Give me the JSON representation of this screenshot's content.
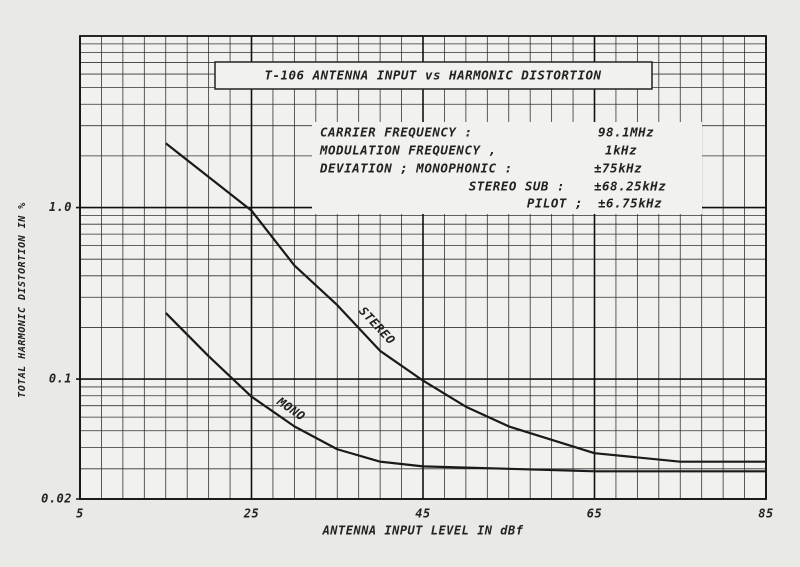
{
  "chart_data": {
    "type": "line",
    "xlabel": "ANTENNA INPUT LEVEL IN dBf",
    "ylabel": "TOTAL HARMONIC DISTORTION IN %",
    "xlim": [
      5,
      85
    ],
    "ylim": [
      0.02,
      10
    ],
    "xticks": [
      5,
      25,
      45,
      65,
      85
    ],
    "yticks": [
      0.02,
      0.1,
      {
        "value": 1,
        "label": "1.0"
      }
    ],
    "log_y": true,
    "grid": true,
    "minor_grid": true,
    "annotations": [
      "T-106 ANTENNA INPUT vs HARMONIC DISTORTION",
      "CARRIER FREQUENCY :",
      "98.1MHz",
      "MODULATION FREQUENCY ,",
      "1kHz",
      "DEVIATION ; MONOPHONIC :",
      "±75kHz",
      "STEREO SUB :",
      "±68.25kHz",
      "PILOT ;",
      "±6.75kHz"
    ],
    "series": [
      {
        "name": "STEREO",
        "color": "#1a1a1a",
        "x": [
          15,
          25,
          30,
          35,
          40,
          45,
          50,
          55,
          65,
          75,
          85
        ],
        "values": [
          2.37,
          0.96,
          0.46,
          0.27,
          0.146,
          0.098,
          0.069,
          0.053,
          0.037,
          0.033,
          0.033
        ]
      },
      {
        "name": "MONO",
        "color": "#1a1a1a",
        "x": [
          15,
          20,
          25,
          30,
          35,
          40,
          45,
          55,
          65,
          75,
          85
        ],
        "values": [
          0.243,
          0.136,
          0.079,
          0.053,
          0.039,
          0.033,
          0.031,
          0.03,
          0.029,
          0.029,
          0.029
        ]
      }
    ]
  }
}
